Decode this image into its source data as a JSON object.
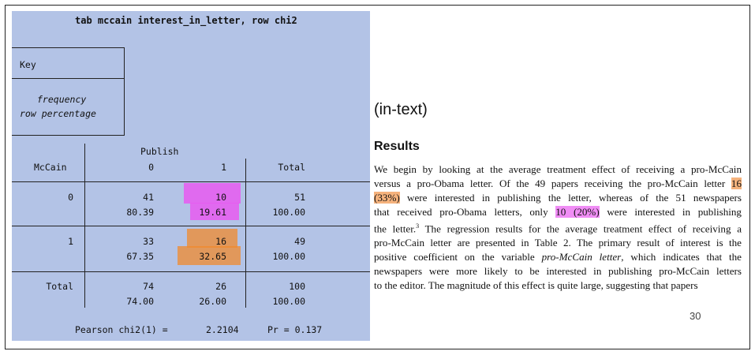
{
  "stata": {
    "command": "tab mccain interest_in_letter, row chi2",
    "key": {
      "title": "Key",
      "line1": "frequency",
      "line2": "row percentage"
    },
    "col_group_label": "Publish",
    "row_var_label": "McCain",
    "col_headers": [
      "0",
      "1",
      "Total"
    ],
    "rows": [
      {
        "label": "0",
        "freq": [
          "41",
          "10",
          "51"
        ],
        "pct": [
          "80.39",
          "19.61",
          "100.00"
        ]
      },
      {
        "label": "1",
        "freq": [
          "33",
          "16",
          "49"
        ],
        "pct": [
          "67.35",
          "32.65",
          "100.00"
        ]
      },
      {
        "label": "Total",
        "freq": [
          "74",
          "26",
          "100"
        ],
        "pct": [
          "74.00",
          "26.00",
          "100.00"
        ]
      }
    ],
    "chi2_label": "Pearson chi2(1) =",
    "chi2_value": "2.2104",
    "pr_label": "Pr = 0.137"
  },
  "intext_label": "(in-text)",
  "results": {
    "heading": "Results",
    "lines": [
      "We begin by looking at the average treatment effect of receiving a pro-McCain",
      "versus a pro-Obama letter. Of the 49 papers receiving the pro-McCain letter 16",
      "(33%) were interested in publishing the letter, whereas of the 51 newspapers",
      "that received pro-Obama letters, only 10 (20%) were interested in publishing",
      "the letter.3 The regression results for the average treatment effect of receiving a",
      "pro-McCain letter are presented in Table 2. The primary result of interest is the",
      "positive coefficient on the variable pro-McCain letter, which indicates that the",
      "newspapers were more likely to be interested in publishing pro-McCain letters",
      "to the editor. The magnitude of this effect is quite large, suggesting that papers"
    ],
    "l2_pre": "versus a pro-Obama letter. Of the 49 papers receiving the pro-McCain letter",
    "l2_hl": "16",
    "l3_hl": "(33%)",
    "l3_post": "were interested in publishing the letter, whereas of the 51 newspapers",
    "l4_pre": "that received pro-Obama letters, only",
    "l4_hl": "10 (20%)",
    "l4_post": "were interested in publishing",
    "l5_pre": "the letter.",
    "l5_sup": "3",
    "l5_post": "The regression results for the average treatment effect of receiving a",
    "l7_pre": "positive coefficient on the variable",
    "l7_it": "pro-McCain letter",
    "l7_post": ", which indicates that the"
  },
  "page_number": "30",
  "colors": {
    "panel": "#b3c3e6",
    "pink_highlight": "#e85af0",
    "orange_highlight": "#f08a2c"
  }
}
